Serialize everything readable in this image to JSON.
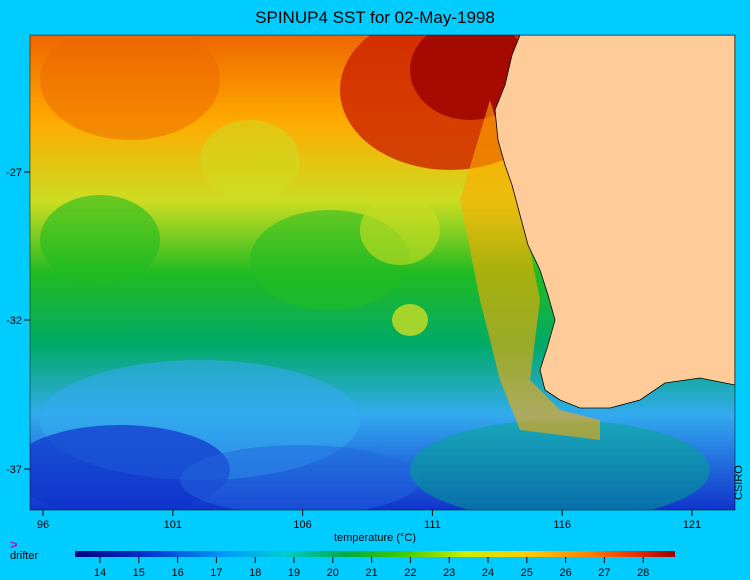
{
  "title": "SPINUP4 SST for 02-May-1998",
  "colorbar": {
    "label": "temperature (°C)",
    "ticks": [
      "14",
      "15",
      "16",
      "17",
      "18",
      "19",
      "20",
      "21",
      "22",
      "23",
      "24",
      "25",
      "26",
      "27",
      "28"
    ]
  },
  "axes": {
    "x_ticks": [
      "96",
      "101",
      "106",
      "111",
      "116",
      "121"
    ],
    "y_ticks": [
      "-27",
      "-32",
      "-37"
    ]
  },
  "credit": "CSIRO",
  "legend": {
    "marker_glyph": ">",
    "marker_label": "drifter",
    "marker_color": "#cc00cc"
  },
  "colors": {
    "background": "#00ccff",
    "land": "#ffcc99",
    "warm": "#990000",
    "cool": "#000099"
  }
}
